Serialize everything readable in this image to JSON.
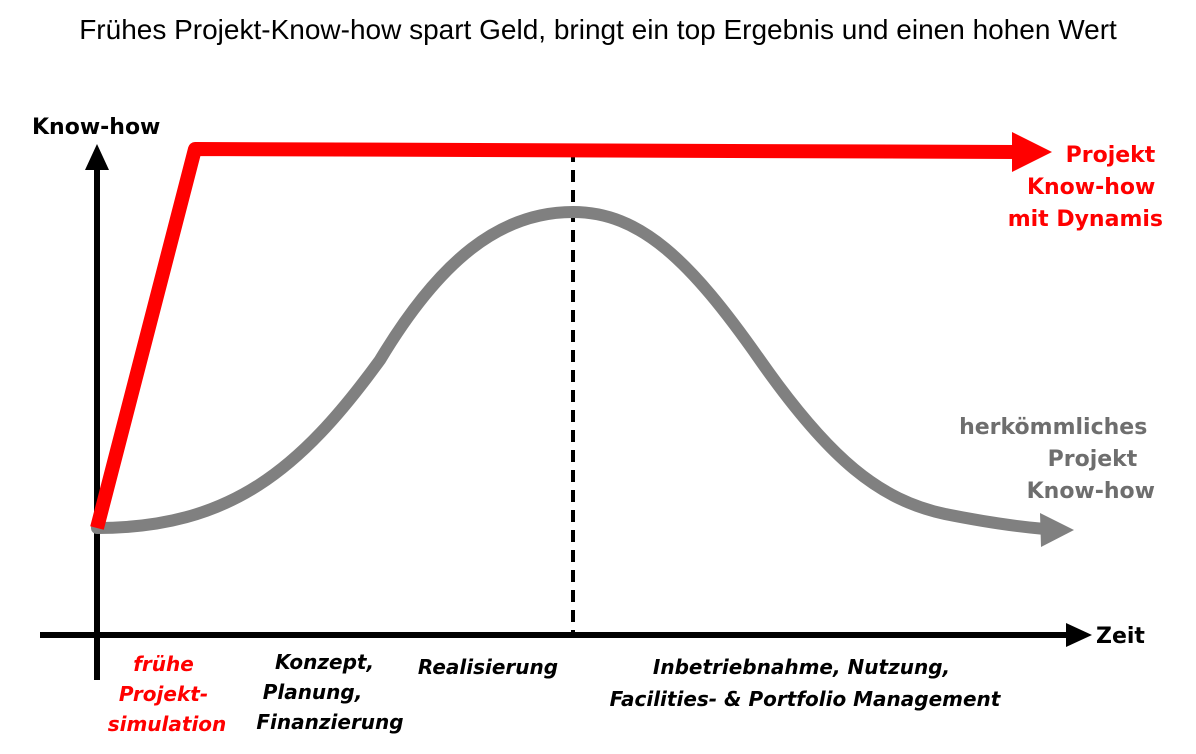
{
  "title": "Frühes Projekt-Know-how spart Geld, bringt ein top Ergebnis und einen hohen Wert",
  "axes": {
    "y_label": "Know-how",
    "x_label": "Zeit"
  },
  "curves": {
    "dynamis": {
      "label_lines": [
        "Projekt",
        "Know-how",
        "mit Dynamis"
      ],
      "color": "#ff0000"
    },
    "traditional": {
      "label_lines": [
        "herkömmliches",
        "Projekt",
        "Know-how"
      ],
      "color": "#808080"
    }
  },
  "phases": [
    {
      "lines": [
        "frühe",
        "Projekt-",
        "simulation"
      ],
      "color": "#ff0000"
    },
    {
      "lines": [
        "Konzept,",
        "Planung,",
        "Finanzierung"
      ],
      "color": "#000000"
    },
    {
      "lines": [
        "Realisierung"
      ],
      "color": "#000000"
    },
    {
      "lines": [
        "Inbetriebnahme, Nutzung,",
        "Facilities- & Portfolio Management"
      ],
      "color": "#000000"
    }
  ]
}
